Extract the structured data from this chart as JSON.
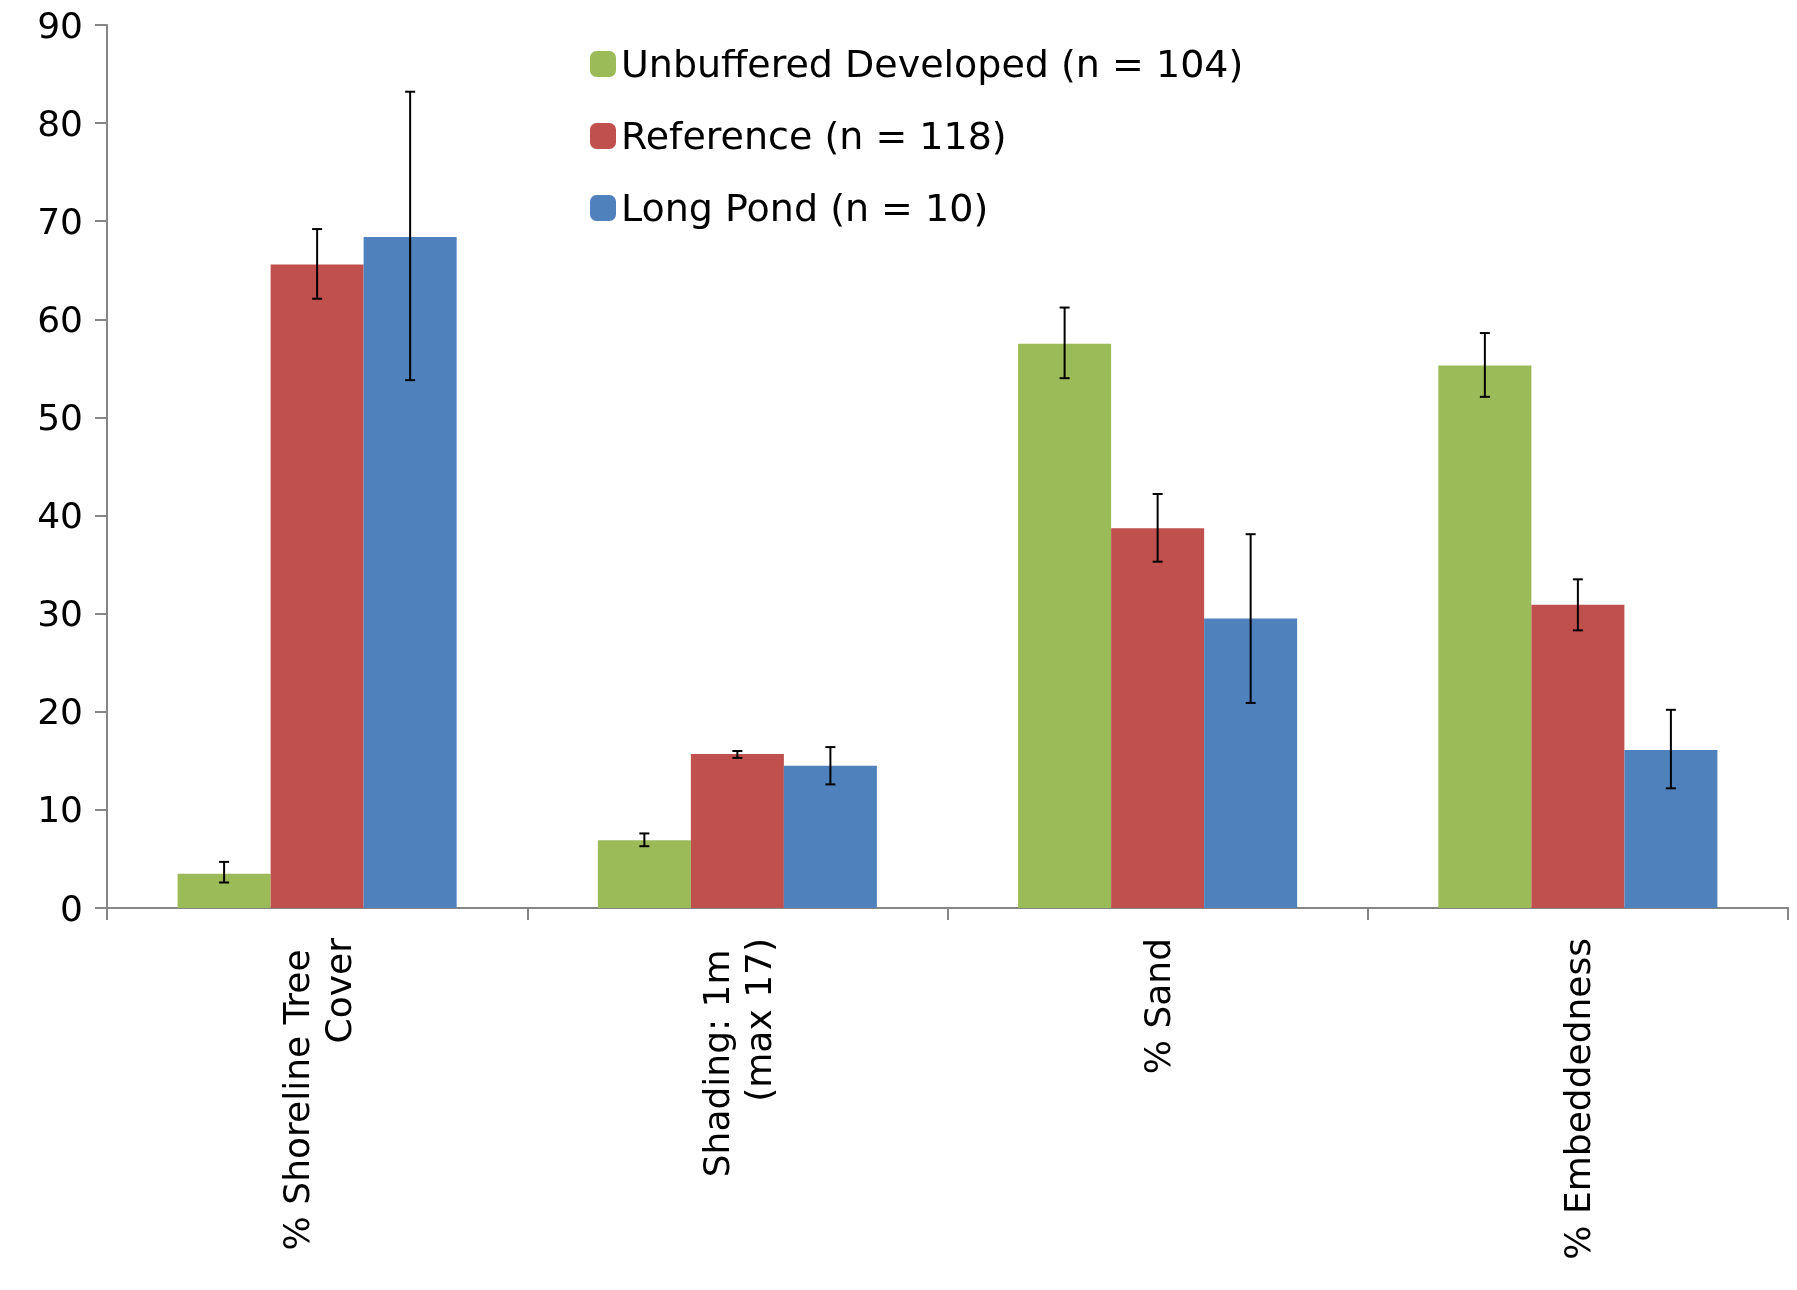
{
  "chart_data": {
    "type": "bar",
    "categories": [
      "% Shoreline Tree Cover",
      "Shading: 1m (max 17)",
      "% Sand",
      "% Embeddedness"
    ],
    "series": [
      {
        "name": "Unbuffered Developed (n = 104)",
        "color": "#9bbb59",
        "values": [
          3.5,
          6.9,
          57.5,
          55.3
        ],
        "errors": [
          [
            2.6,
            4.7
          ],
          [
            6.3,
            7.6
          ],
          [
            54.0,
            61.2
          ],
          [
            52.1,
            58.6
          ]
        ]
      },
      {
        "name": "Reference (n = 118)",
        "color": "#c0504d",
        "values": [
          65.6,
          15.7,
          38.7,
          30.9
        ],
        "errors": [
          [
            62.1,
            69.2
          ],
          [
            15.3,
            16.0
          ],
          [
            35.3,
            42.2
          ],
          [
            28.3,
            33.5
          ]
        ]
      },
      {
        "name": "Long Pond (n = 10)",
        "color": "#4f81bd",
        "values": [
          68.4,
          14.5,
          29.5,
          16.1
        ],
        "errors": [
          [
            53.8,
            83.2
          ],
          [
            12.6,
            16.4
          ],
          [
            20.9,
            38.1
          ],
          [
            12.2,
            20.2
          ]
        ]
      }
    ],
    "ylim": [
      0,
      90
    ],
    "yticks": [
      0,
      10,
      20,
      30,
      40,
      50,
      60,
      70,
      80,
      90
    ],
    "grid": false,
    "legend": "top"
  }
}
